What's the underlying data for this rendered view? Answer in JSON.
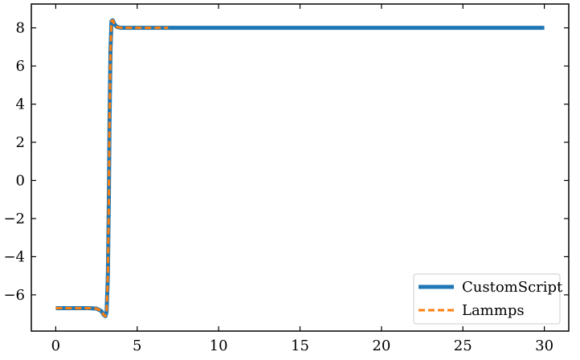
{
  "chart_data": {
    "type": "line",
    "title": "",
    "xlabel": "",
    "ylabel": "",
    "xlim": [
      -1.5,
      31.5
    ],
    "ylim": [
      -7.9,
      9.25
    ],
    "xticks": [
      0,
      5,
      10,
      15,
      20,
      25,
      30
    ],
    "yticks": [
      -6,
      -4,
      -2,
      0,
      2,
      4,
      6,
      8
    ],
    "xtick_labels": [
      "0",
      "5",
      "10",
      "15",
      "20",
      "25",
      "30"
    ],
    "ytick_labels": [
      "−6",
      "−4",
      "−2",
      "0",
      "2",
      "4",
      "6",
      "8"
    ],
    "grid": false,
    "legend_position": "lower-right",
    "series": [
      {
        "name": "CustomScript",
        "color": "#1f77b4",
        "style": "solid",
        "x": [
          0,
          1,
          2,
          2.5,
          2.8,
          2.95,
          3.05,
          3.12,
          3.2,
          3.26,
          3.3,
          3.36,
          3.42,
          3.5,
          3.6,
          3.75,
          4.0,
          5,
          7,
          10,
          15,
          20,
          25,
          30
        ],
        "y": [
          -6.7,
          -6.7,
          -6.7,
          -6.72,
          -6.85,
          -7.05,
          -7.12,
          -6.9,
          -5.0,
          -1.0,
          3.0,
          6.8,
          8.35,
          8.4,
          8.2,
          8.05,
          8.0,
          8.0,
          8.0,
          8.0,
          8.0,
          8.0,
          8.0,
          8.0
        ]
      },
      {
        "name": "Lammps",
        "color": "#ff7f0e",
        "style": "dashed",
        "x": [
          0,
          1,
          2,
          2.5,
          2.8,
          2.95,
          3.05,
          3.12,
          3.2,
          3.26,
          3.3,
          3.36,
          3.42,
          3.5,
          3.6,
          3.75,
          4.0,
          5,
          6.9
        ],
        "y": [
          -6.7,
          -6.7,
          -6.7,
          -6.72,
          -6.85,
          -7.05,
          -7.12,
          -6.9,
          -5.0,
          -1.0,
          3.0,
          6.8,
          8.35,
          8.4,
          8.2,
          8.05,
          8.0,
          8.0,
          8.0
        ]
      }
    ]
  }
}
